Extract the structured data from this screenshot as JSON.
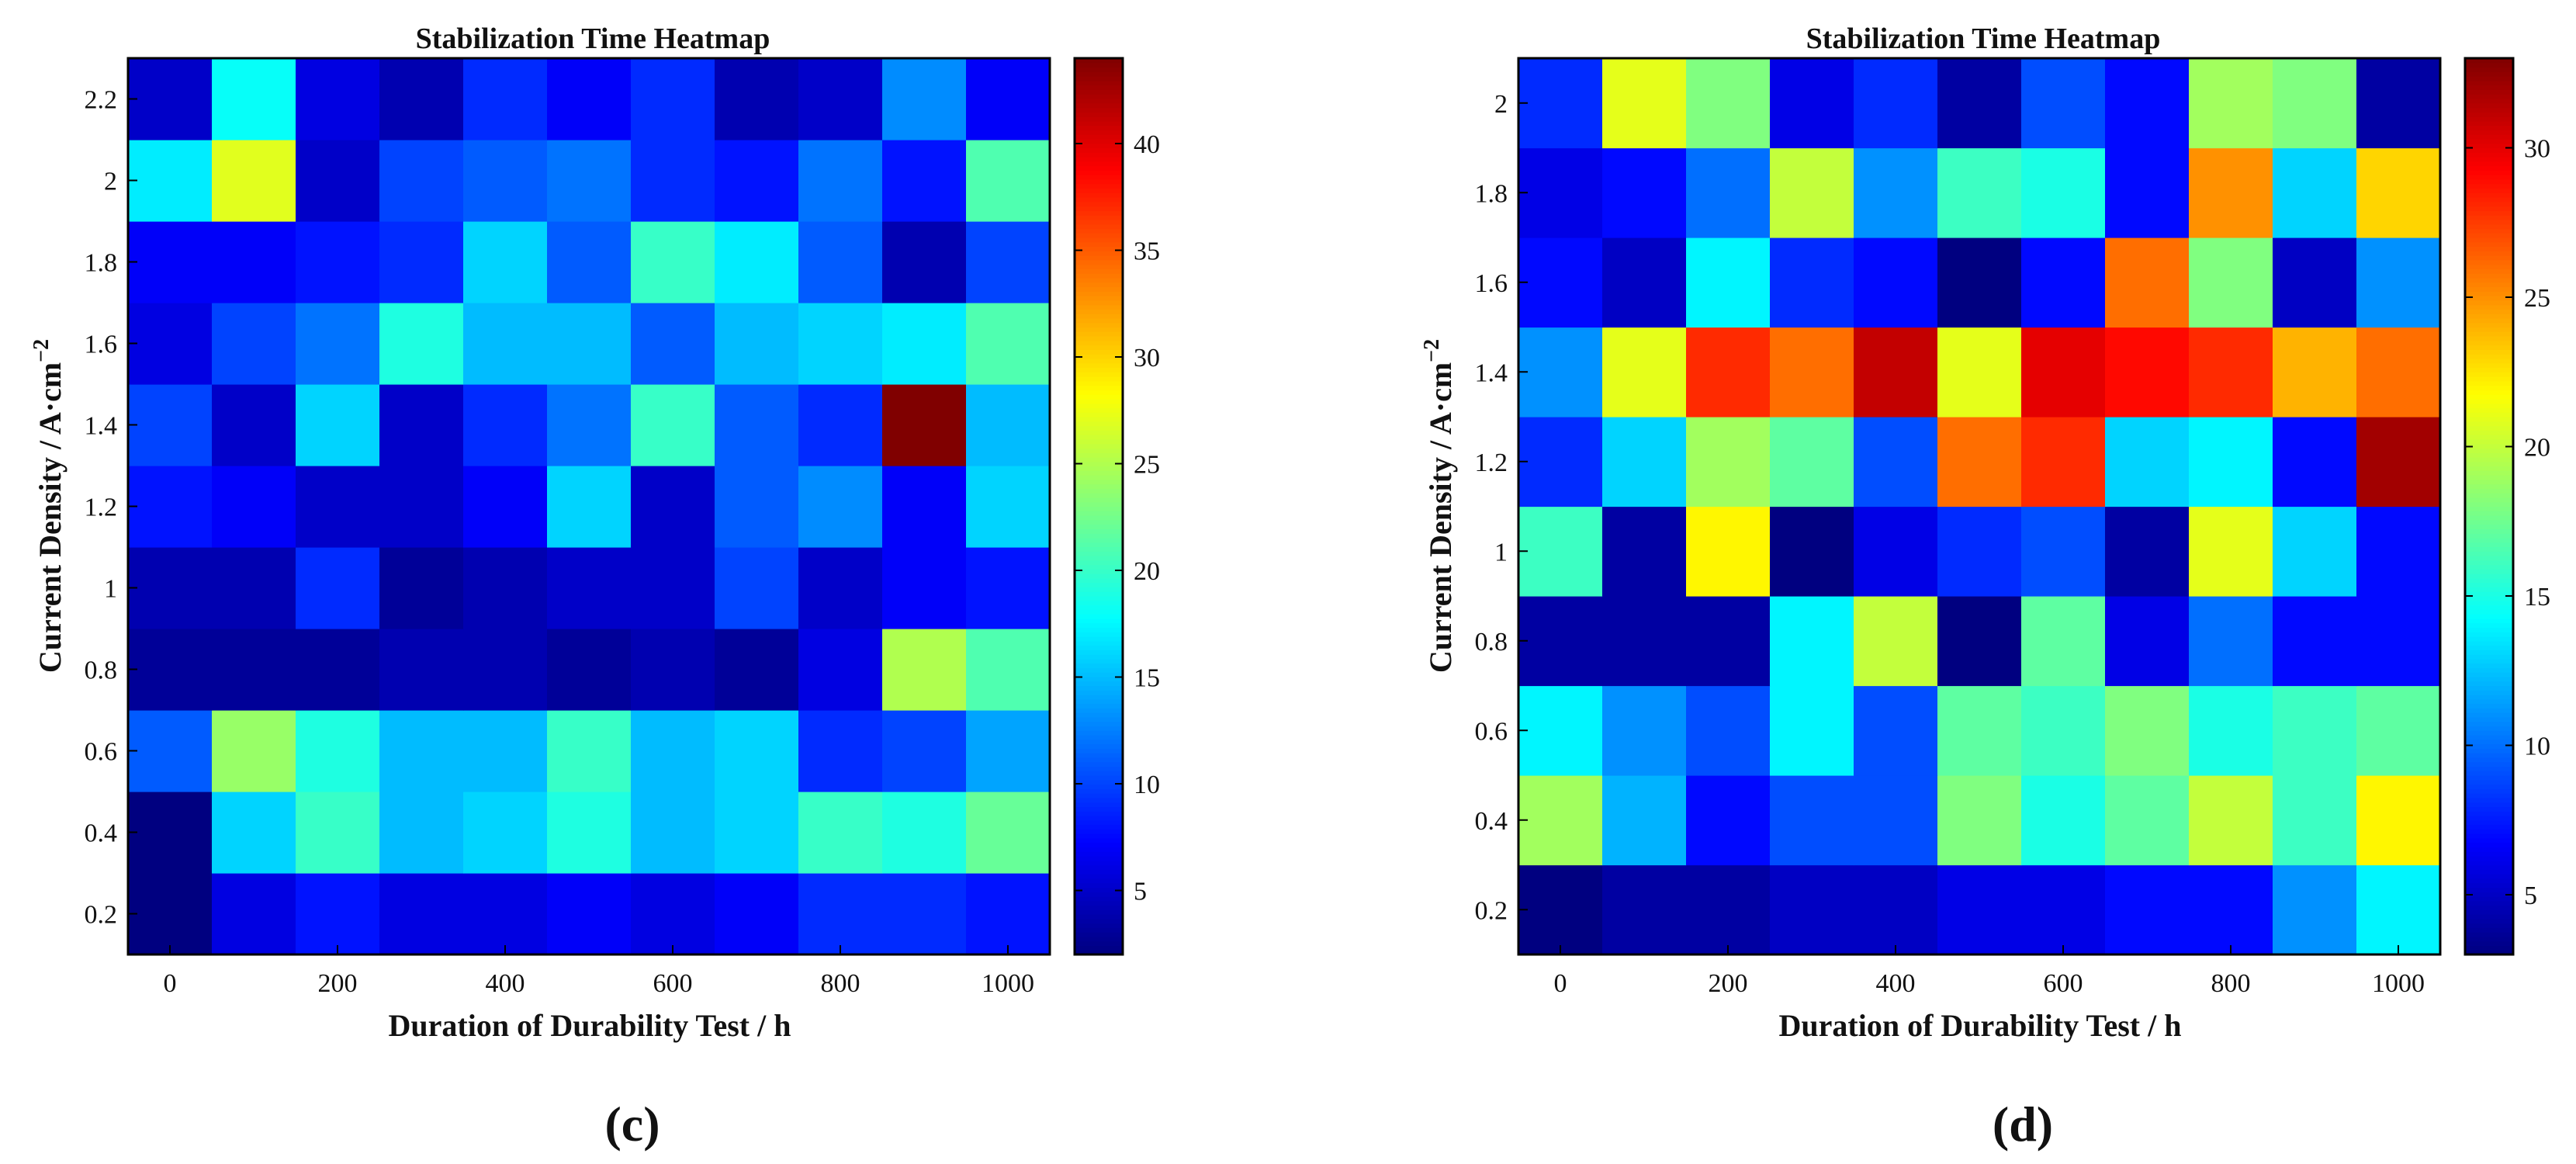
{
  "chart_data": [
    {
      "type": "heatmap",
      "panel_label": "(c)",
      "title": "Stabilization Time Heatmap",
      "xlabel": "Duration of Durability Test / h",
      "ylabel": "Current Density / A·cm",
      "ylabel_sup": "−2",
      "x": [
        0,
        100,
        200,
        300,
        400,
        500,
        600,
        700,
        800,
        900,
        1000
      ],
      "y": [
        0.2,
        0.4,
        0.6,
        0.8,
        1.0,
        1.2,
        1.4,
        1.6,
        1.8,
        2.0,
        2.2
      ],
      "xticks": [
        "0",
        "200",
        "400",
        "600",
        "800",
        "1000"
      ],
      "yticks": [
        "0.2",
        "0.4",
        "0.6",
        "0.8",
        "1",
        "1.2",
        "1.4",
        "1.6",
        "1.8",
        "2",
        "2.2"
      ],
      "colorbar": {
        "min": 2,
        "max": 44,
        "ticks": [
          "5",
          "10",
          "15",
          "20",
          "25",
          "30",
          "35",
          "40"
        ]
      },
      "z": [
        [
          2,
          6,
          8,
          6,
          6,
          7,
          6,
          7,
          9,
          9,
          8
        ],
        [
          2,
          16,
          20,
          15,
          16,
          19,
          15,
          16,
          20,
          19,
          22
        ],
        [
          11,
          24,
          19,
          15,
          15,
          20,
          15,
          16,
          9,
          10,
          14
        ],
        [
          3,
          3,
          3,
          4,
          4,
          3,
          4,
          3,
          6,
          25,
          21
        ],
        [
          4,
          4,
          9,
          3,
          4,
          5,
          5,
          10,
          5,
          7,
          8
        ],
        [
          8,
          7,
          5,
          5,
          7,
          16,
          5,
          11,
          13,
          7,
          16
        ],
        [
          10,
          5,
          16,
          5,
          9,
          12,
          20,
          11,
          9,
          44,
          15
        ],
        [
          6,
          10,
          12,
          19,
          15,
          15,
          11,
          15,
          16,
          17,
          21
        ],
        [
          7,
          7,
          8,
          9,
          16,
          11,
          20,
          17,
          11,
          4,
          10
        ],
        [
          17,
          27,
          5,
          10,
          11,
          12,
          9,
          8,
          12,
          8,
          21
        ],
        [
          5,
          18,
          6,
          4,
          9,
          7,
          9,
          4,
          5,
          13,
          7
        ]
      ]
    },
    {
      "type": "heatmap",
      "panel_label": "(d)",
      "title": "Stabilization Time Heatmap",
      "xlabel": "Duration of Durability Test / h",
      "ylabel": "Current Density / A·cm",
      "ylabel_sup": "−2",
      "x": [
        0,
        100,
        200,
        300,
        400,
        500,
        600,
        700,
        800,
        900,
        1000
      ],
      "y": [
        0.2,
        0.4,
        0.6,
        0.8,
        1.0,
        1.2,
        1.4,
        1.6,
        1.8,
        2.0
      ],
      "xticks": [
        "0",
        "200",
        "400",
        "600",
        "800",
        "1000"
      ],
      "yticks": [
        "0.2",
        "0.4",
        "0.6",
        "0.8",
        "1",
        "1.2",
        "1.4",
        "1.6",
        "1.8",
        "2"
      ],
      "colorbar": {
        "min": 3,
        "max": 33,
        "ticks": [
          "5",
          "10",
          "15",
          "20",
          "25",
          "30"
        ]
      },
      "z": [
        [
          3,
          4,
          4,
          5,
          5,
          6,
          6,
          7,
          7,
          11,
          14
        ],
        [
          19,
          12,
          7,
          9,
          9,
          18,
          15,
          17,
          20,
          16,
          22
        ],
        [
          14,
          11,
          9,
          14,
          9,
          17,
          16,
          18,
          15,
          16,
          17
        ],
        [
          4,
          4,
          4,
          14,
          20,
          3,
          17,
          6,
          10,
          7,
          7
        ],
        [
          16,
          4,
          22,
          3,
          6,
          8,
          9,
          4,
          21,
          13,
          7
        ],
        [
          8,
          13,
          19,
          17,
          9,
          26,
          28,
          13,
          14,
          7,
          32
        ],
        [
          11,
          21,
          28,
          26,
          31,
          21,
          30,
          29,
          28,
          24,
          26
        ],
        [
          7,
          5,
          14,
          8,
          7,
          3,
          7,
          26,
          18,
          5,
          11
        ],
        [
          6,
          7,
          10,
          20,
          11,
          16,
          15,
          7,
          25,
          13,
          23
        ],
        [
          8,
          21,
          18,
          6,
          8,
          4,
          9,
          7,
          19,
          18,
          4
        ]
      ]
    }
  ]
}
